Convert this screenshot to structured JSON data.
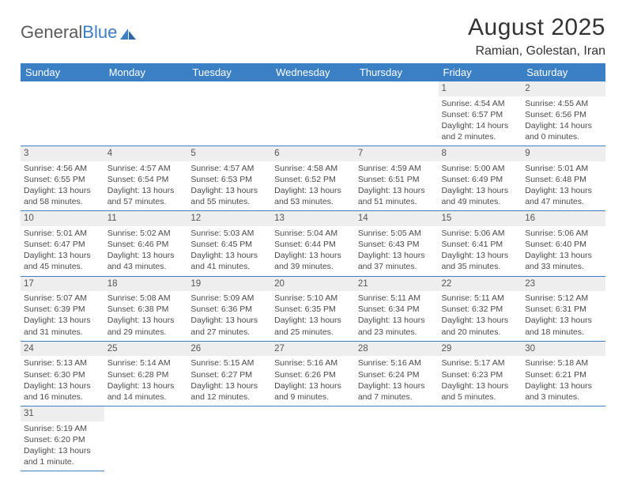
{
  "brand": {
    "general": "General",
    "blue": "Blue"
  },
  "title": "August 2025",
  "location": "Ramian, Golestan, Iran",
  "colors": {
    "header_bg": "#3b7fc4",
    "header_fg": "#ffffff",
    "daynum_bg": "#eeeeee",
    "rule": "#3b7fc4",
    "text": "#4a4a4a"
  },
  "weekdays": [
    "Sunday",
    "Monday",
    "Tuesday",
    "Wednesday",
    "Thursday",
    "Friday",
    "Saturday"
  ],
  "weeks": [
    [
      null,
      null,
      null,
      null,
      null,
      {
        "n": "1",
        "sunrise": "Sunrise: 4:54 AM",
        "sunset": "Sunset: 6:57 PM",
        "daylight": "Daylight: 14 hours and 2 minutes."
      },
      {
        "n": "2",
        "sunrise": "Sunrise: 4:55 AM",
        "sunset": "Sunset: 6:56 PM",
        "daylight": "Daylight: 14 hours and 0 minutes."
      }
    ],
    [
      {
        "n": "3",
        "sunrise": "Sunrise: 4:56 AM",
        "sunset": "Sunset: 6:55 PM",
        "daylight": "Daylight: 13 hours and 58 minutes."
      },
      {
        "n": "4",
        "sunrise": "Sunrise: 4:57 AM",
        "sunset": "Sunset: 6:54 PM",
        "daylight": "Daylight: 13 hours and 57 minutes."
      },
      {
        "n": "5",
        "sunrise": "Sunrise: 4:57 AM",
        "sunset": "Sunset: 6:53 PM",
        "daylight": "Daylight: 13 hours and 55 minutes."
      },
      {
        "n": "6",
        "sunrise": "Sunrise: 4:58 AM",
        "sunset": "Sunset: 6:52 PM",
        "daylight": "Daylight: 13 hours and 53 minutes."
      },
      {
        "n": "7",
        "sunrise": "Sunrise: 4:59 AM",
        "sunset": "Sunset: 6:51 PM",
        "daylight": "Daylight: 13 hours and 51 minutes."
      },
      {
        "n": "8",
        "sunrise": "Sunrise: 5:00 AM",
        "sunset": "Sunset: 6:49 PM",
        "daylight": "Daylight: 13 hours and 49 minutes."
      },
      {
        "n": "9",
        "sunrise": "Sunrise: 5:01 AM",
        "sunset": "Sunset: 6:48 PM",
        "daylight": "Daylight: 13 hours and 47 minutes."
      }
    ],
    [
      {
        "n": "10",
        "sunrise": "Sunrise: 5:01 AM",
        "sunset": "Sunset: 6:47 PM",
        "daylight": "Daylight: 13 hours and 45 minutes."
      },
      {
        "n": "11",
        "sunrise": "Sunrise: 5:02 AM",
        "sunset": "Sunset: 6:46 PM",
        "daylight": "Daylight: 13 hours and 43 minutes."
      },
      {
        "n": "12",
        "sunrise": "Sunrise: 5:03 AM",
        "sunset": "Sunset: 6:45 PM",
        "daylight": "Daylight: 13 hours and 41 minutes."
      },
      {
        "n": "13",
        "sunrise": "Sunrise: 5:04 AM",
        "sunset": "Sunset: 6:44 PM",
        "daylight": "Daylight: 13 hours and 39 minutes."
      },
      {
        "n": "14",
        "sunrise": "Sunrise: 5:05 AM",
        "sunset": "Sunset: 6:43 PM",
        "daylight": "Daylight: 13 hours and 37 minutes."
      },
      {
        "n": "15",
        "sunrise": "Sunrise: 5:06 AM",
        "sunset": "Sunset: 6:41 PM",
        "daylight": "Daylight: 13 hours and 35 minutes."
      },
      {
        "n": "16",
        "sunrise": "Sunrise: 5:06 AM",
        "sunset": "Sunset: 6:40 PM",
        "daylight": "Daylight: 13 hours and 33 minutes."
      }
    ],
    [
      {
        "n": "17",
        "sunrise": "Sunrise: 5:07 AM",
        "sunset": "Sunset: 6:39 PM",
        "daylight": "Daylight: 13 hours and 31 minutes."
      },
      {
        "n": "18",
        "sunrise": "Sunrise: 5:08 AM",
        "sunset": "Sunset: 6:38 PM",
        "daylight": "Daylight: 13 hours and 29 minutes."
      },
      {
        "n": "19",
        "sunrise": "Sunrise: 5:09 AM",
        "sunset": "Sunset: 6:36 PM",
        "daylight": "Daylight: 13 hours and 27 minutes."
      },
      {
        "n": "20",
        "sunrise": "Sunrise: 5:10 AM",
        "sunset": "Sunset: 6:35 PM",
        "daylight": "Daylight: 13 hours and 25 minutes."
      },
      {
        "n": "21",
        "sunrise": "Sunrise: 5:11 AM",
        "sunset": "Sunset: 6:34 PM",
        "daylight": "Daylight: 13 hours and 23 minutes."
      },
      {
        "n": "22",
        "sunrise": "Sunrise: 5:11 AM",
        "sunset": "Sunset: 6:32 PM",
        "daylight": "Daylight: 13 hours and 20 minutes."
      },
      {
        "n": "23",
        "sunrise": "Sunrise: 5:12 AM",
        "sunset": "Sunset: 6:31 PM",
        "daylight": "Daylight: 13 hours and 18 minutes."
      }
    ],
    [
      {
        "n": "24",
        "sunrise": "Sunrise: 5:13 AM",
        "sunset": "Sunset: 6:30 PM",
        "daylight": "Daylight: 13 hours and 16 minutes."
      },
      {
        "n": "25",
        "sunrise": "Sunrise: 5:14 AM",
        "sunset": "Sunset: 6:28 PM",
        "daylight": "Daylight: 13 hours and 14 minutes."
      },
      {
        "n": "26",
        "sunrise": "Sunrise: 5:15 AM",
        "sunset": "Sunset: 6:27 PM",
        "daylight": "Daylight: 13 hours and 12 minutes."
      },
      {
        "n": "27",
        "sunrise": "Sunrise: 5:16 AM",
        "sunset": "Sunset: 6:26 PM",
        "daylight": "Daylight: 13 hours and 9 minutes."
      },
      {
        "n": "28",
        "sunrise": "Sunrise: 5:16 AM",
        "sunset": "Sunset: 6:24 PM",
        "daylight": "Daylight: 13 hours and 7 minutes."
      },
      {
        "n": "29",
        "sunrise": "Sunrise: 5:17 AM",
        "sunset": "Sunset: 6:23 PM",
        "daylight": "Daylight: 13 hours and 5 minutes."
      },
      {
        "n": "30",
        "sunrise": "Sunrise: 5:18 AM",
        "sunset": "Sunset: 6:21 PM",
        "daylight": "Daylight: 13 hours and 3 minutes."
      }
    ],
    [
      {
        "n": "31",
        "sunrise": "Sunrise: 5:19 AM",
        "sunset": "Sunset: 6:20 PM",
        "daylight": "Daylight: 13 hours and 1 minute."
      },
      null,
      null,
      null,
      null,
      null,
      null
    ]
  ]
}
